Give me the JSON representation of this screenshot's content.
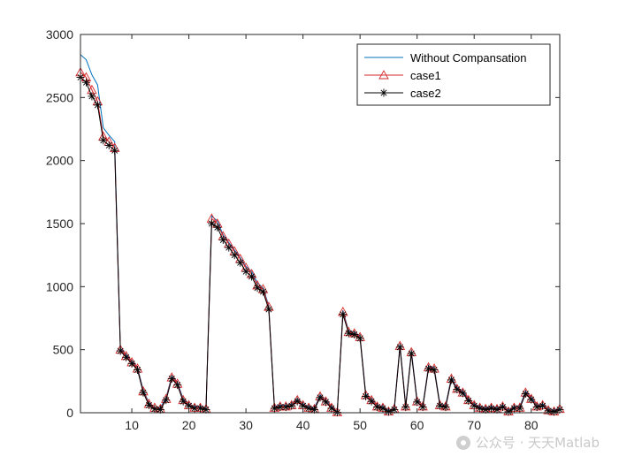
{
  "chart_data": {
    "type": "line",
    "xlim": [
      1,
      85
    ],
    "ylim": [
      0,
      3000
    ],
    "x_ticks": [
      10,
      20,
      30,
      40,
      50,
      60,
      70,
      80
    ],
    "y_ticks": [
      0,
      500,
      1000,
      1500,
      2000,
      2500,
      3000
    ],
    "grid": false,
    "legend_position": "top-right",
    "x": [
      1,
      2,
      3,
      4,
      5,
      6,
      7,
      8,
      9,
      10,
      11,
      12,
      13,
      14,
      15,
      16,
      17,
      18,
      19,
      20,
      21,
      22,
      23,
      24,
      25,
      26,
      27,
      28,
      29,
      30,
      31,
      32,
      33,
      34,
      35,
      36,
      37,
      38,
      39,
      40,
      41,
      42,
      43,
      44,
      45,
      46,
      47,
      48,
      49,
      50,
      51,
      52,
      53,
      54,
      55,
      56,
      57,
      58,
      59,
      60,
      61,
      62,
      63,
      64,
      65,
      66,
      67,
      68,
      69,
      70,
      71,
      72,
      73,
      74,
      75,
      76,
      77,
      78,
      79,
      80,
      81,
      82,
      83,
      84,
      85
    ],
    "series": [
      {
        "name": "Without Compansation",
        "color": "#0072BD",
        "marker": "none",
        "values": [
          2840,
          2800,
          2680,
          2600,
          2260,
          2200,
          2150,
          510,
          460,
          410,
          360,
          180,
          80,
          40,
          40,
          120,
          290,
          240,
          110,
          70,
          50,
          50,
          40,
          1560,
          1520,
          1410,
          1350,
          1290,
          1230,
          1160,
          1120,
          1030,
          990,
          850,
          50,
          60,
          60,
          70,
          110,
          70,
          50,
          40,
          140,
          100,
          50,
          10,
          810,
          650,
          640,
          610,
          150,
          110,
          60,
          50,
          20,
          40,
          540,
          60,
          490,
          100,
          60,
          370,
          360,
          70,
          60,
          280,
          200,
          170,
          110,
          70,
          50,
          40,
          50,
          40,
          60,
          20,
          50,
          50,
          170,
          120,
          60,
          70,
          30,
          20,
          40
        ]
      },
      {
        "name": "case1",
        "color": "#D62728",
        "marker": "triangle",
        "values": [
          2700,
          2660,
          2560,
          2470,
          2190,
          2150,
          2100,
          500,
          450,
          400,
          350,
          170,
          70,
          40,
          30,
          110,
          280,
          230,
          100,
          60,
          40,
          40,
          30,
          1540,
          1500,
          1400,
          1340,
          1280,
          1220,
          1150,
          1100,
          1010,
          980,
          840,
          40,
          50,
          50,
          60,
          100,
          60,
          40,
          30,
          130,
          90,
          40,
          5,
          800,
          640,
          630,
          600,
          140,
          100,
          50,
          40,
          10,
          30,
          530,
          50,
          480,
          90,
          50,
          360,
          350,
          60,
          50,
          270,
          190,
          160,
          100,
          60,
          40,
          30,
          40,
          30,
          50,
          10,
          40,
          40,
          160,
          110,
          50,
          60,
          20,
          10,
          30
        ]
      },
      {
        "name": "case2",
        "color": "#000000",
        "marker": "asterisk",
        "values": [
          2660,
          2620,
          2510,
          2440,
          2160,
          2120,
          2080,
          490,
          440,
          390,
          340,
          160,
          60,
          30,
          25,
          100,
          270,
          220,
          90,
          55,
          35,
          35,
          25,
          1500,
          1470,
          1370,
          1310,
          1250,
          1190,
          1120,
          1080,
          990,
          960,
          820,
          35,
          45,
          45,
          55,
          90,
          55,
          35,
          25,
          120,
          85,
          35,
          3,
          780,
          630,
          620,
          590,
          130,
          90,
          45,
          35,
          8,
          25,
          520,
          45,
          470,
          85,
          45,
          350,
          340,
          55,
          45,
          260,
          185,
          155,
          95,
          55,
          35,
          25,
          35,
          25,
          45,
          8,
          35,
          35,
          150,
          105,
          45,
          55,
          15,
          8,
          25
        ]
      }
    ]
  },
  "watermark": {
    "text": "公众号 · 天天Matlab",
    "icon": "wechat-icon"
  }
}
